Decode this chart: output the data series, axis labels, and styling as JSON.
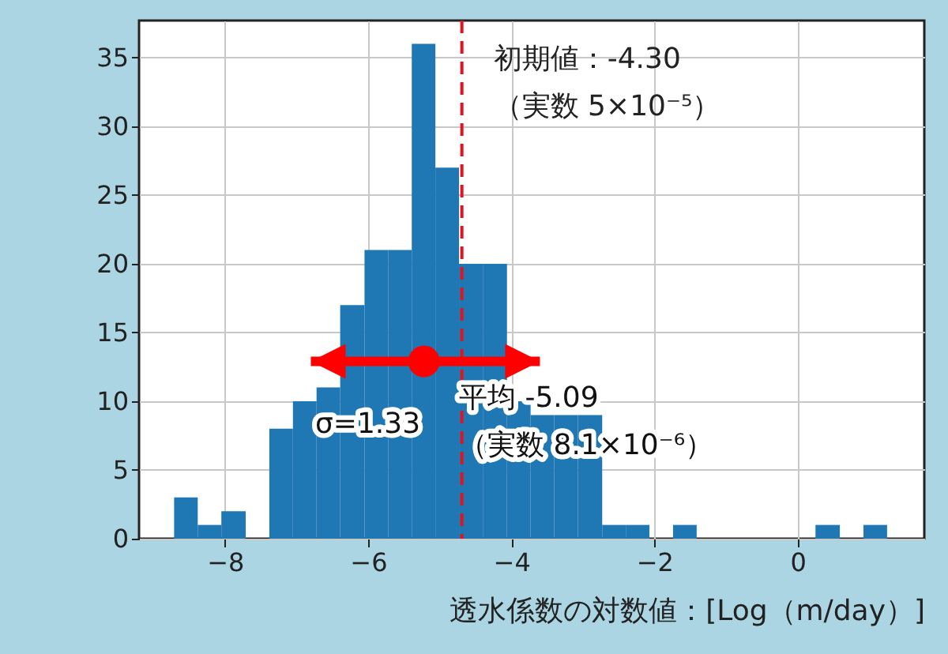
{
  "chart_data": {
    "type": "histogram",
    "xlabel": "透水係数の対数値：[Log（m/day）]",
    "bins": [
      -8.71,
      -8.38,
      -8.05,
      -7.71,
      -7.38,
      -7.05,
      -6.72,
      -6.39,
      -6.05,
      -5.72,
      -5.39,
      -5.06,
      -4.73,
      -4.39,
      -4.06,
      -3.73,
      -3.4,
      -3.07,
      -2.73,
      -2.4,
      -2.07,
      -1.74,
      -1.41,
      0.25,
      0.59,
      0.92,
      1.25
    ],
    "values": [
      3,
      1,
      2,
      0,
      8,
      10,
      11,
      17,
      21,
      21,
      36,
      27,
      20,
      20,
      10,
      9,
      9,
      9,
      1,
      1,
      0,
      1,
      0,
      1,
      0,
      1
    ],
    "color": "#1f77b4",
    "series": [
      {
        "type": "scatter",
        "color": "#ff0000",
        "x": [
          -5.22
        ],
        "values": [
          12.9
        ],
        "xerrors": [
          [
            -6.8,
            -3.6
          ]
        ]
      }
    ],
    "marker": "circle",
    "xlim": [
      -9.2,
      1.77
    ],
    "ylim": [
      0,
      37.7
    ],
    "xticks": [
      -8,
      -6,
      -4,
      -2,
      0
    ],
    "yticks": [
      0,
      5,
      10,
      15,
      20,
      25,
      30,
      35
    ],
    "grid": true,
    "ref_lines": [
      {
        "axis": "x",
        "value": -4.69,
        "label": "初期値：-4.30\n（実数 5×10⁻⁵）",
        "color": "#e0141e",
        "line_style": "dashed"
      }
    ],
    "annotations": [
      {
        "text": "平均 -5.09\n（実数 8.1×10⁻⁶）",
        "x": -4.73,
        "y": 10.2
      },
      {
        "text": "σ=1.33",
        "x": -6.74,
        "y": 8.3
      }
    ]
  }
}
